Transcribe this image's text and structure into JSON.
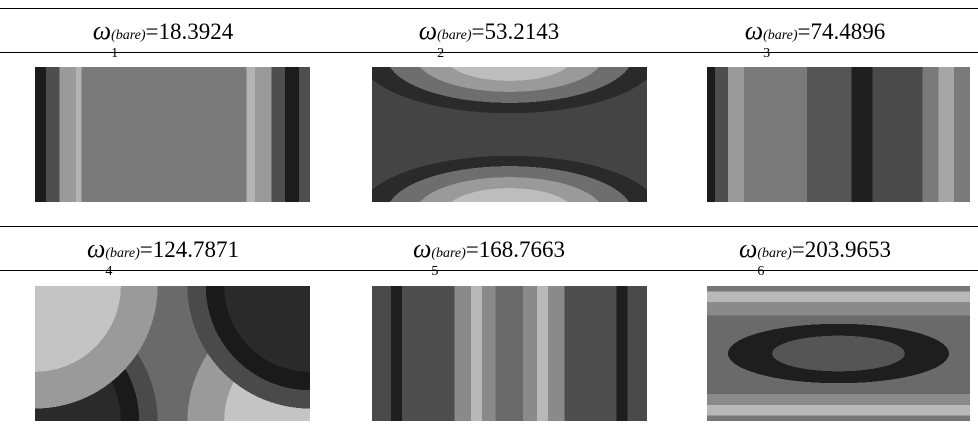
{
  "panels": [
    {
      "symbol": "ω",
      "subscript": "1",
      "superscript": "(bare)",
      "value": "=18.3924"
    },
    {
      "symbol": "ω",
      "subscript": "2",
      "superscript": "(bare)",
      "value": "=53.2143"
    },
    {
      "symbol": "ω",
      "subscript": "3",
      "superscript": "(bare)",
      "value": "=74.4896"
    },
    {
      "symbol": "ω",
      "subscript": "4",
      "superscript": "(bare)",
      "value": "=124.7871"
    },
    {
      "symbol": "ω",
      "subscript": "5",
      "superscript": "(bare)",
      "value": "=168.7663"
    },
    {
      "symbol": "ω",
      "subscript": "6",
      "superscript": "(bare)",
      "value": "=203.9653"
    }
  ]
}
